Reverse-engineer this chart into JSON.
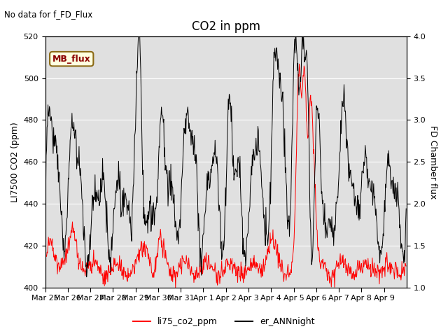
{
  "title": "CO2 in ppm",
  "no_data_text": "No data for f_FD_Flux",
  "ylabel_left": "LI7500 CO2 (ppm)",
  "ylabel_right": "FD Chamber flux",
  "ylim_left": [
    400,
    520
  ],
  "ylim_right": [
    1.0,
    4.0
  ],
  "xtick_labels": [
    "Mar 25",
    "Mar 26",
    "Mar 27",
    "Mar 28",
    "Mar 29",
    "Mar 30",
    "Mar 31",
    "Apr 1",
    "Apr 2",
    "Apr 3",
    "Apr 4",
    "Apr 5",
    "Apr 6",
    "Apr 7",
    "Apr 8",
    "Apr 9"
  ],
  "legend_entries": [
    "li75_co2_ppm",
    "er_ANNnight"
  ],
  "legend_colors": [
    "red",
    "black"
  ],
  "mb_flux_label": "MB_flux",
  "background_color": "#e0e0e0",
  "figure_bg": "#ffffff",
  "title_fontsize": 12,
  "label_fontsize": 9,
  "tick_fontsize": 8
}
